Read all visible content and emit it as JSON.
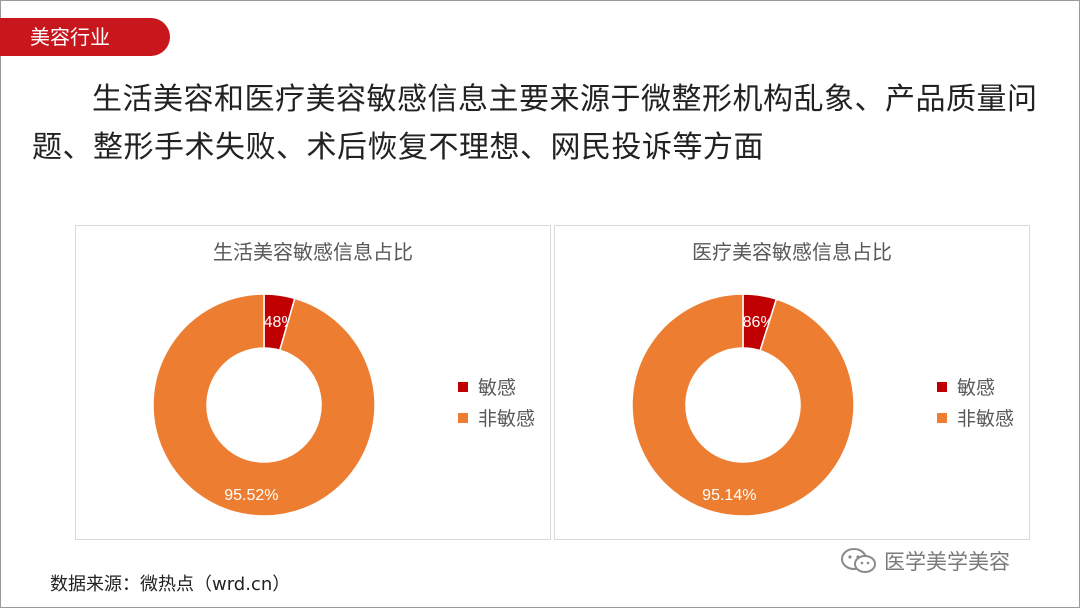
{
  "tag_label": "美容行业",
  "headline": "生活美容和医疗美容敏感信息主要来源于微整形机构乱象、产品质量问题、整形手术失败、术后恢复不理想、网民投诉等方面",
  "source": "数据来源：微热点（wrd.cn）",
  "watermark": "医学美学美容",
  "colors": {
    "sensitive": "#c00000",
    "non_sensitive": "#ed7d31",
    "tag": "#c8161d"
  },
  "chart_data": [
    {
      "type": "pie",
      "title": "生活美容敏感信息占比",
      "legend_position": "right",
      "categories": [
        "敏感",
        "非敏感"
      ],
      "values": [
        4.48,
        95.52
      ],
      "labels": [
        "4.48%",
        "95.52%"
      ]
    },
    {
      "type": "pie",
      "title": "医疗美容敏感信息占比",
      "legend_position": "right",
      "categories": [
        "敏感",
        "非敏感"
      ],
      "values": [
        4.86,
        95.14
      ],
      "labels": [
        "4.86%",
        "95.14%"
      ]
    }
  ]
}
